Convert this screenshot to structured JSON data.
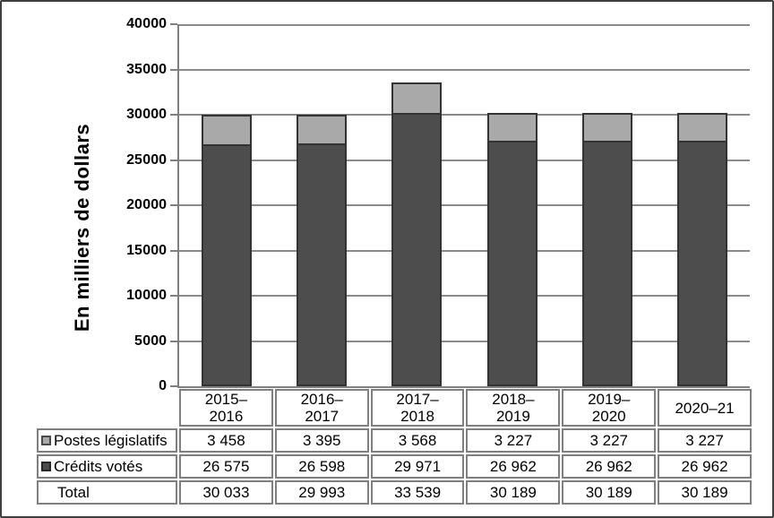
{
  "figure": {
    "ylabel": "En milliers de dollars"
  },
  "chart_data": {
    "type": "bar",
    "stacked": true,
    "title": "",
    "xlabel": "",
    "ylabel": "En milliers de dollars",
    "ylim": [
      0,
      40000
    ],
    "ytick_step": 5000,
    "ytick_labels_top_to_bottom": [
      "40 000",
      "35 000",
      "30 000",
      "25 000",
      "20 000",
      "15 000",
      "10 000",
      "5 000",
      "0"
    ],
    "grid": true,
    "legend_position": "table-rows-left",
    "categories": [
      "2015–2016",
      "2016–2017",
      "2017–2018",
      "2018–2019",
      "2019–2020",
      "2020–21"
    ],
    "category_display": [
      "2015–\n2016",
      "2016–\n2017",
      "2017–\n2018",
      "2018–\n2019",
      "2019–\n2020",
      "2020–21"
    ],
    "series": [
      {
        "name": "Postes législatifs",
        "color": "#a9a9a9",
        "stack_order": "top",
        "values": [
          3458,
          3395,
          3568,
          3227,
          3227,
          3227
        ]
      },
      {
        "name": "Crédits votés",
        "color": "#4d4d4d",
        "stack_order": "bottom",
        "values": [
          26575,
          26598,
          29971,
          26962,
          26962,
          26962
        ]
      }
    ],
    "totals": [
      30033,
      29993,
      33539,
      30189,
      30189,
      30189
    ]
  },
  "table": {
    "header_cells": [
      "2015–\n2016",
      "2016–\n2017",
      "2017–\n2018",
      "2018–\n2019",
      "2019–\n2020",
      "2020–21"
    ],
    "rows": [
      {
        "label": "Postes législatifs",
        "swatch": "light",
        "values": [
          "3 458",
          "3 395",
          "3 568",
          "3 227",
          "3 227",
          "3 227"
        ]
      },
      {
        "label": "Crédits votés",
        "swatch": "dark",
        "values": [
          "26 575",
          "26 598",
          "29 971",
          "26 962",
          "26 962",
          "26 962"
        ]
      },
      {
        "label": "Total",
        "swatch": "none",
        "values": [
          "30 033",
          "29 993",
          "33 539",
          "30 189",
          "30 189",
          "30 189"
        ]
      }
    ]
  },
  "colors": {
    "light_series": "#a9a9a9",
    "dark_series": "#4d4d4d",
    "bar_border": "#333333",
    "swatch_light_border": "#4a4a4a",
    "swatch_dark_border": "#262626",
    "gridline": "#8a8a8a",
    "axis": "#808080",
    "table_border": "#7f7f7f",
    "figure_border": "#3f3f3f",
    "background": "#ffffff",
    "text": "#000000"
  }
}
